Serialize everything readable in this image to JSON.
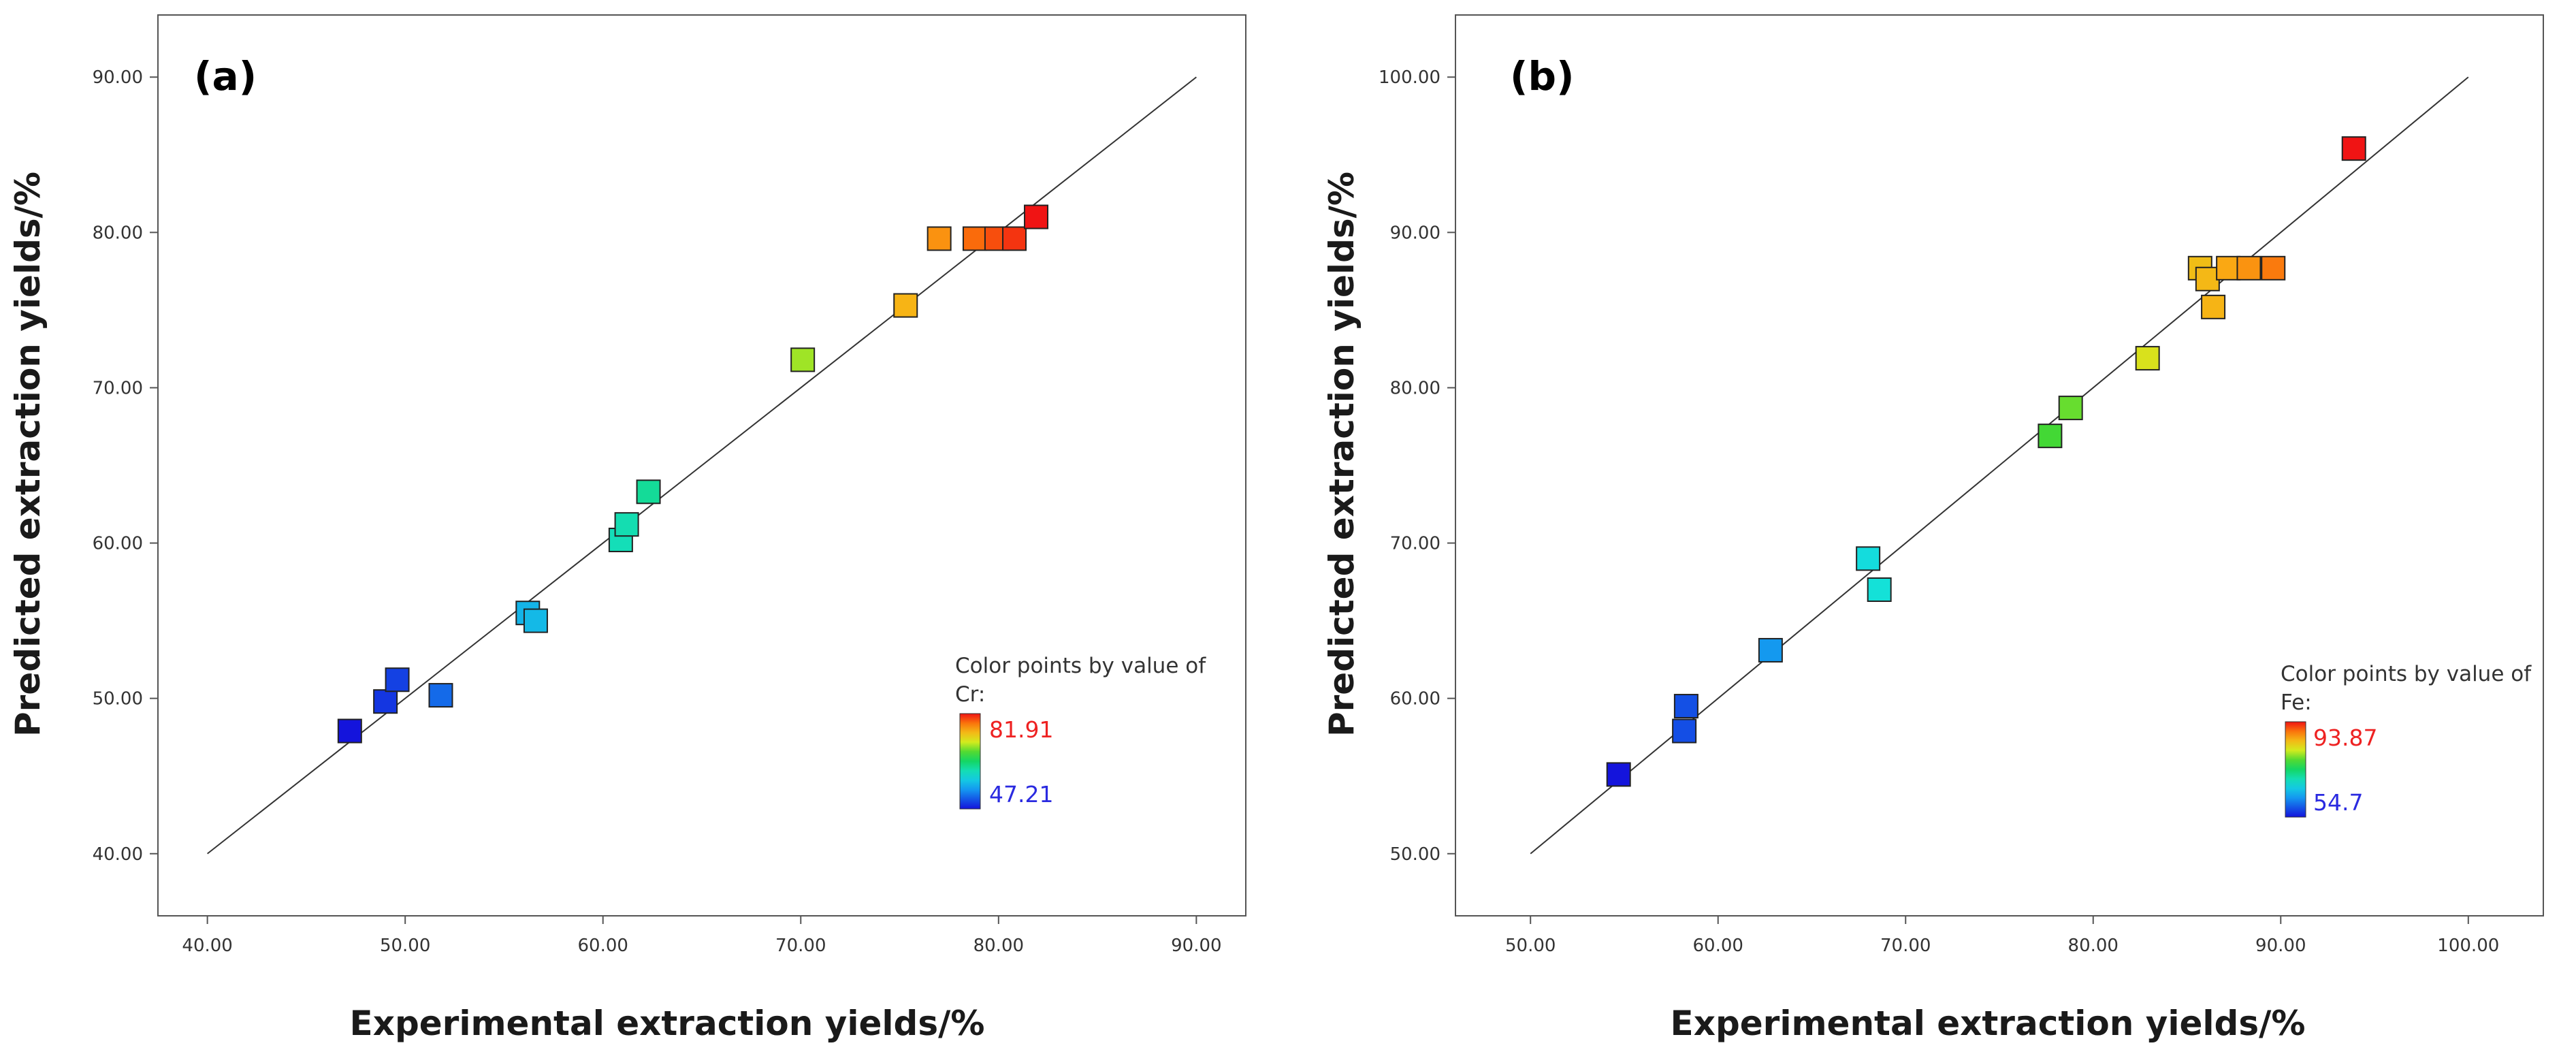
{
  "chart_data": [
    {
      "type": "scatter",
      "panel_label": "(a)",
      "xlabel": "Experimental extraction yields/%",
      "ylabel": "Predicted extraction yields/%",
      "xlim": [
        37.5,
        92.5
      ],
      "ylim": [
        36.0,
        94.0
      ],
      "x_ticks": [
        "40.00",
        "50.00",
        "60.00",
        "70.00",
        "80.00",
        "90.00"
      ],
      "y_ticks": [
        "40.00",
        "50.00",
        "60.00",
        "70.00",
        "80.00",
        "90.00"
      ],
      "diagonal": [
        [
          40,
          40
        ],
        [
          90,
          90
        ]
      ],
      "legend": {
        "title_line1": "Color points by value of",
        "title_line2": "Cr:",
        "max_label": "81.91",
        "min_label": "47.21",
        "max": 81.91,
        "min": 47.21,
        "placement": "bottom-right"
      },
      "points": [
        {
          "x": 47.2,
          "y": 47.9
        },
        {
          "x": 49.0,
          "y": 49.8
        },
        {
          "x": 49.6,
          "y": 51.2
        },
        {
          "x": 51.8,
          "y": 50.2
        },
        {
          "x": 56.2,
          "y": 55.5
        },
        {
          "x": 56.6,
          "y": 55.0
        },
        {
          "x": 60.9,
          "y": 60.2
        },
        {
          "x": 61.2,
          "y": 61.2
        },
        {
          "x": 62.3,
          "y": 63.3
        },
        {
          "x": 70.1,
          "y": 71.8
        },
        {
          "x": 75.3,
          "y": 75.3
        },
        {
          "x": 77.0,
          "y": 79.6
        },
        {
          "x": 78.8,
          "y": 79.6
        },
        {
          "x": 79.9,
          "y": 79.6
        },
        {
          "x": 80.8,
          "y": 79.6
        },
        {
          "x": 81.9,
          "y": 81.0
        }
      ]
    },
    {
      "type": "scatter",
      "panel_label": "(b)",
      "xlabel": "Experimental extraction yields/%",
      "ylabel": "Predicted extraction yields/%",
      "xlim": [
        46.0,
        104.0
      ],
      "ylim": [
        46.0,
        104.0
      ],
      "x_ticks": [
        "50.00",
        "60.00",
        "70.00",
        "80.00",
        "90.00",
        "100.00"
      ],
      "y_ticks": [
        "50.00",
        "60.00",
        "70.00",
        "80.00",
        "90.00",
        "100.00"
      ],
      "diagonal": [
        [
          50,
          50
        ],
        [
          100,
          100
        ]
      ],
      "legend": {
        "title_line1": "Color points by value of",
        "title_line2": "Fe:",
        "max_label": "93.87",
        "min_label": "54.7",
        "max": 93.87,
        "min": 54.7,
        "placement": "bottom-right"
      },
      "points": [
        {
          "x": 54.7,
          "y": 55.1
        },
        {
          "x": 58.2,
          "y": 57.9
        },
        {
          "x": 58.3,
          "y": 59.5
        },
        {
          "x": 62.8,
          "y": 63.1
        },
        {
          "x": 68.0,
          "y": 69.0
        },
        {
          "x": 68.6,
          "y": 67.0
        },
        {
          "x": 77.7,
          "y": 76.9
        },
        {
          "x": 78.8,
          "y": 78.7
        },
        {
          "x": 82.9,
          "y": 81.9
        },
        {
          "x": 85.7,
          "y": 87.7
        },
        {
          "x": 86.1,
          "y": 87.0
        },
        {
          "x": 86.4,
          "y": 85.2
        },
        {
          "x": 87.2,
          "y": 87.7
        },
        {
          "x": 88.3,
          "y": 87.7
        },
        {
          "x": 89.6,
          "y": 87.7
        },
        {
          "x": 93.9,
          "y": 95.4
        }
      ]
    }
  ]
}
